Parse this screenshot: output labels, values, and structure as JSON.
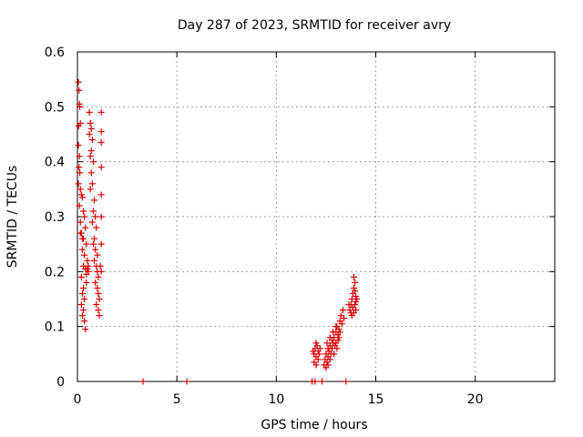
{
  "chart_data": {
    "type": "scatter",
    "title": "Day 287 of 2023, SRMTID for receiver avry",
    "xlabel": "GPS time / hours",
    "ylabel": "SRMTID / TECUs",
    "xlim": [
      0,
      24
    ],
    "ylim": [
      0,
      0.6
    ],
    "xticks": [
      0,
      5,
      10,
      15,
      20
    ],
    "xtick_labels": [
      "0",
      "5",
      "10",
      "15",
      "20"
    ],
    "yticks": [
      0,
      0.1,
      0.2,
      0.3,
      0.4,
      0.5,
      0.6
    ],
    "ytick_labels": [
      "0",
      "0.1",
      "0.2",
      "0.3",
      "0.4",
      "0.5",
      "0.6"
    ],
    "grid": true,
    "marker": "+",
    "color": "#dd0000",
    "series": [
      {
        "name": "SRMTID",
        "points": [
          [
            0.05,
            0.545
          ],
          [
            0.08,
            0.53
          ],
          [
            0.1,
            0.505
          ],
          [
            0.12,
            0.5
          ],
          [
            0.06,
            0.465
          ],
          [
            0.15,
            0.47
          ],
          [
            0.05,
            0.43
          ],
          [
            0.1,
            0.41
          ],
          [
            0.08,
            0.39
          ],
          [
            0.12,
            0.38
          ],
          [
            0.05,
            0.36
          ],
          [
            0.15,
            0.35
          ],
          [
            0.2,
            0.34
          ],
          [
            0.25,
            0.335
          ],
          [
            0.1,
            0.32
          ],
          [
            0.3,
            0.31
          ],
          [
            0.35,
            0.3
          ],
          [
            0.15,
            0.29
          ],
          [
            0.4,
            0.28
          ],
          [
            0.2,
            0.27
          ],
          [
            0.3,
            0.26
          ],
          [
            0.45,
            0.25
          ],
          [
            0.25,
            0.24
          ],
          [
            0.35,
            0.23
          ],
          [
            0.5,
            0.22
          ],
          [
            0.3,
            0.21
          ],
          [
            0.4,
            0.205
          ],
          [
            0.55,
            0.2
          ],
          [
            0.2,
            0.19
          ],
          [
            0.45,
            0.18
          ],
          [
            0.3,
            0.17
          ],
          [
            0.25,
            0.16
          ],
          [
            0.35,
            0.15
          ],
          [
            0.2,
            0.14
          ],
          [
            0.3,
            0.13
          ],
          [
            0.25,
            0.12
          ],
          [
            0.35,
            0.11
          ],
          [
            0.4,
            0.095
          ],
          [
            0.6,
            0.49
          ],
          [
            0.65,
            0.47
          ],
          [
            0.7,
            0.46
          ],
          [
            0.6,
            0.45
          ],
          [
            0.75,
            0.44
          ],
          [
            0.7,
            0.42
          ],
          [
            0.65,
            0.41
          ],
          [
            0.8,
            0.4
          ],
          [
            0.7,
            0.38
          ],
          [
            0.75,
            0.36
          ],
          [
            0.65,
            0.35
          ],
          [
            0.85,
            0.33
          ],
          [
            0.8,
            0.31
          ],
          [
            0.9,
            0.3
          ],
          [
            0.75,
            0.29
          ],
          [
            0.95,
            0.28
          ],
          [
            0.85,
            0.26
          ],
          [
            0.8,
            0.25
          ],
          [
            0.9,
            0.24
          ],
          [
            1.0,
            0.23
          ],
          [
            0.85,
            0.22
          ],
          [
            0.95,
            0.21
          ],
          [
            1.0,
            0.2
          ],
          [
            1.05,
            0.19
          ],
          [
            0.9,
            0.18
          ],
          [
            1.0,
            0.17
          ],
          [
            1.05,
            0.16
          ],
          [
            1.1,
            0.15
          ],
          [
            0.95,
            0.14
          ],
          [
            1.05,
            0.13
          ],
          [
            1.1,
            0.12
          ],
          [
            1.2,
            0.49
          ],
          [
            1.2,
            0.455
          ],
          [
            1.2,
            0.435
          ],
          [
            1.2,
            0.39
          ],
          [
            1.2,
            0.34
          ],
          [
            1.2,
            0.3
          ],
          [
            1.2,
            0.25
          ],
          [
            1.15,
            0.21
          ],
          [
            1.2,
            0.2
          ],
          [
            0.5,
            0.205
          ],
          [
            0.55,
            0.21
          ],
          [
            0.45,
            0.195
          ],
          [
            0.25,
            0.26
          ],
          [
            0.15,
            0.27
          ],
          [
            3.3,
            0.0
          ],
          [
            5.5,
            0.0
          ],
          [
            11.8,
            0.0
          ],
          [
            11.95,
            0.0
          ],
          [
            12.3,
            0.0
          ],
          [
            13.5,
            0.0
          ],
          [
            11.9,
            0.05
          ],
          [
            11.95,
            0.06
          ],
          [
            12.0,
            0.07
          ],
          [
            12.05,
            0.065
          ],
          [
            12.1,
            0.055
          ],
          [
            12.0,
            0.045
          ],
          [
            11.9,
            0.035
          ],
          [
            12.1,
            0.04
          ],
          [
            12.15,
            0.05
          ],
          [
            12.0,
            0.03
          ],
          [
            12.2,
            0.06
          ],
          [
            11.85,
            0.055
          ],
          [
            12.4,
            0.03
          ],
          [
            12.45,
            0.04
          ],
          [
            12.5,
            0.05
          ],
          [
            12.55,
            0.035
          ],
          [
            12.6,
            0.045
          ],
          [
            12.65,
            0.055
          ],
          [
            12.5,
            0.025
          ],
          [
            12.6,
            0.03
          ],
          [
            12.7,
            0.04
          ],
          [
            12.75,
            0.05
          ],
          [
            12.8,
            0.06
          ],
          [
            12.85,
            0.07
          ],
          [
            12.7,
            0.065
          ],
          [
            12.8,
            0.075
          ],
          [
            12.9,
            0.08
          ],
          [
            12.95,
            0.065
          ],
          [
            13.0,
            0.07
          ],
          [
            13.0,
            0.09
          ],
          [
            13.05,
            0.1
          ],
          [
            13.1,
            0.085
          ],
          [
            13.15,
            0.095
          ],
          [
            13.2,
            0.11
          ],
          [
            13.1,
            0.075
          ],
          [
            13.25,
            0.12
          ],
          [
            13.3,
            0.105
          ],
          [
            13.35,
            0.13
          ],
          [
            13.4,
            0.115
          ],
          [
            13.2,
            0.09
          ],
          [
            13.05,
            0.06
          ],
          [
            12.9,
            0.05
          ],
          [
            12.6,
            0.06
          ],
          [
            12.55,
            0.07
          ],
          [
            12.7,
            0.08
          ],
          [
            12.85,
            0.09
          ],
          [
            13.0,
            0.1
          ],
          [
            13.15,
            0.08
          ],
          [
            13.7,
            0.13
          ],
          [
            13.75,
            0.14
          ],
          [
            13.8,
            0.15
          ],
          [
            13.85,
            0.16
          ],
          [
            13.9,
            0.17
          ],
          [
            13.95,
            0.165
          ],
          [
            14.0,
            0.155
          ],
          [
            14.0,
            0.145
          ],
          [
            13.85,
            0.135
          ],
          [
            13.9,
            0.125
          ],
          [
            13.95,
            0.18
          ],
          [
            13.9,
            0.19
          ],
          [
            14.05,
            0.15
          ],
          [
            13.8,
            0.12
          ],
          [
            13.75,
            0.125
          ],
          [
            13.65,
            0.14
          ],
          [
            14.0,
            0.13
          ],
          [
            13.95,
            0.14
          ]
        ]
      }
    ]
  }
}
